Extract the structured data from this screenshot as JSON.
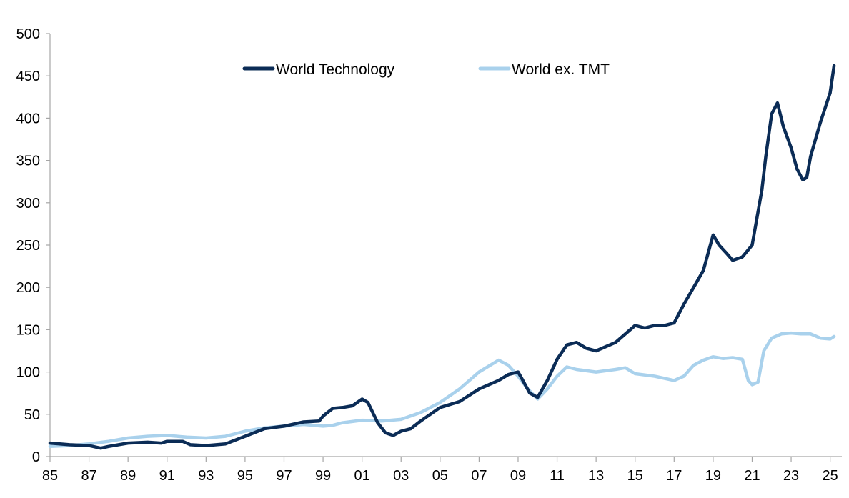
{
  "chart_data": {
    "type": "line",
    "title": "",
    "xlabel": "",
    "ylabel": "",
    "xlim": [
      1985,
      2025.6
    ],
    "ylim": [
      0,
      500
    ],
    "x_ticks": [
      "85",
      "87",
      "89",
      "91",
      "93",
      "95",
      "97",
      "99",
      "01",
      "03",
      "05",
      "07",
      "09",
      "11",
      "13",
      "15",
      "17",
      "19",
      "21",
      "23",
      "25"
    ],
    "y_ticks": [
      "0",
      "50",
      "100",
      "150",
      "200",
      "250",
      "300",
      "350",
      "400",
      "450",
      "500"
    ],
    "grid": false,
    "legend_position": "top-center",
    "series": [
      {
        "name": "World Technology",
        "color": "#0b2c56",
        "points": [
          [
            1985.0,
            16
          ],
          [
            1986.0,
            14
          ],
          [
            1987.0,
            13
          ],
          [
            1987.6,
            10
          ],
          [
            1988.0,
            12
          ],
          [
            1989.0,
            16
          ],
          [
            1990.0,
            17
          ],
          [
            1990.7,
            16
          ],
          [
            1991.0,
            18
          ],
          [
            1991.8,
            18
          ],
          [
            1992.2,
            14
          ],
          [
            1993.0,
            13
          ],
          [
            1994.0,
            15
          ],
          [
            1995.0,
            24
          ],
          [
            1996.0,
            33
          ],
          [
            1997.0,
            36
          ],
          [
            1998.0,
            41
          ],
          [
            1998.8,
            42
          ],
          [
            1999.0,
            48
          ],
          [
            1999.5,
            57
          ],
          [
            2000.0,
            58
          ],
          [
            2000.5,
            60
          ],
          [
            2001.0,
            68
          ],
          [
            2001.3,
            64
          ],
          [
            2001.8,
            40
          ],
          [
            2002.2,
            28
          ],
          [
            2002.6,
            25
          ],
          [
            2003.0,
            30
          ],
          [
            2003.5,
            33
          ],
          [
            2004.0,
            42
          ],
          [
            2005.0,
            58
          ],
          [
            2006.0,
            65
          ],
          [
            2007.0,
            80
          ],
          [
            2008.0,
            90
          ],
          [
            2008.5,
            97
          ],
          [
            2009.0,
            100
          ],
          [
            2009.2,
            92
          ],
          [
            2009.6,
            75
          ],
          [
            2010.0,
            70
          ],
          [
            2010.5,
            90
          ],
          [
            2011.0,
            115
          ],
          [
            2011.5,
            132
          ],
          [
            2012.0,
            135
          ],
          [
            2012.5,
            128
          ],
          [
            2013.0,
            125
          ],
          [
            2014.0,
            135
          ],
          [
            2015.0,
            155
          ],
          [
            2015.5,
            152
          ],
          [
            2016.0,
            155
          ],
          [
            2016.5,
            155
          ],
          [
            2017.0,
            158
          ],
          [
            2017.5,
            180
          ],
          [
            2018.0,
            200
          ],
          [
            2018.5,
            220
          ],
          [
            2019.0,
            262
          ],
          [
            2019.3,
            250
          ],
          [
            2019.7,
            240
          ],
          [
            2020.0,
            232
          ],
          [
            2020.5,
            236
          ],
          [
            2021.0,
            250
          ],
          [
            2021.5,
            315
          ],
          [
            2021.7,
            355
          ],
          [
            2022.0,
            405
          ],
          [
            2022.3,
            418
          ],
          [
            2022.6,
            390
          ],
          [
            2023.0,
            365
          ],
          [
            2023.3,
            340
          ],
          [
            2023.6,
            327
          ],
          [
            2023.8,
            330
          ],
          [
            2024.0,
            355
          ],
          [
            2024.5,
            395
          ],
          [
            2025.0,
            430
          ],
          [
            2025.2,
            462
          ]
        ]
      },
      {
        "name": "World ex. TMT",
        "color": "#a9d1ec",
        "points": [
          [
            1985.0,
            12
          ],
          [
            1986.0,
            13
          ],
          [
            1987.0,
            15
          ],
          [
            1988.0,
            18
          ],
          [
            1989.0,
            22
          ],
          [
            1990.0,
            24
          ],
          [
            1991.0,
            25
          ],
          [
            1992.0,
            23
          ],
          [
            1993.0,
            22
          ],
          [
            1994.0,
            24
          ],
          [
            1995.0,
            30
          ],
          [
            1996.0,
            34
          ],
          [
            1997.0,
            36
          ],
          [
            1998.0,
            38
          ],
          [
            1999.0,
            36
          ],
          [
            1999.5,
            37
          ],
          [
            2000.0,
            40
          ],
          [
            2001.0,
            43
          ],
          [
            2002.0,
            42
          ],
          [
            2003.0,
            44
          ],
          [
            2004.0,
            52
          ],
          [
            2005.0,
            64
          ],
          [
            2006.0,
            80
          ],
          [
            2007.0,
            100
          ],
          [
            2008.0,
            114
          ],
          [
            2008.5,
            108
          ],
          [
            2009.0,
            95
          ],
          [
            2009.5,
            80
          ],
          [
            2010.0,
            68
          ],
          [
            2010.5,
            80
          ],
          [
            2011.0,
            95
          ],
          [
            2011.5,
            106
          ],
          [
            2012.0,
            103
          ],
          [
            2013.0,
            100
          ],
          [
            2014.0,
            103
          ],
          [
            2014.5,
            105
          ],
          [
            2015.0,
            98
          ],
          [
            2016.0,
            95
          ],
          [
            2017.0,
            90
          ],
          [
            2017.5,
            95
          ],
          [
            2018.0,
            108
          ],
          [
            2018.5,
            114
          ],
          [
            2019.0,
            118
          ],
          [
            2019.5,
            116
          ],
          [
            2020.0,
            117
          ],
          [
            2020.5,
            115
          ],
          [
            2020.8,
            90
          ],
          [
            2021.0,
            85
          ],
          [
            2021.3,
            88
          ],
          [
            2021.6,
            125
          ],
          [
            2022.0,
            140
          ],
          [
            2022.5,
            145
          ],
          [
            2023.0,
            146
          ],
          [
            2023.5,
            145
          ],
          [
            2024.0,
            145
          ],
          [
            2024.5,
            140
          ],
          [
            2025.0,
            139
          ],
          [
            2025.2,
            142
          ]
        ]
      }
    ]
  }
}
